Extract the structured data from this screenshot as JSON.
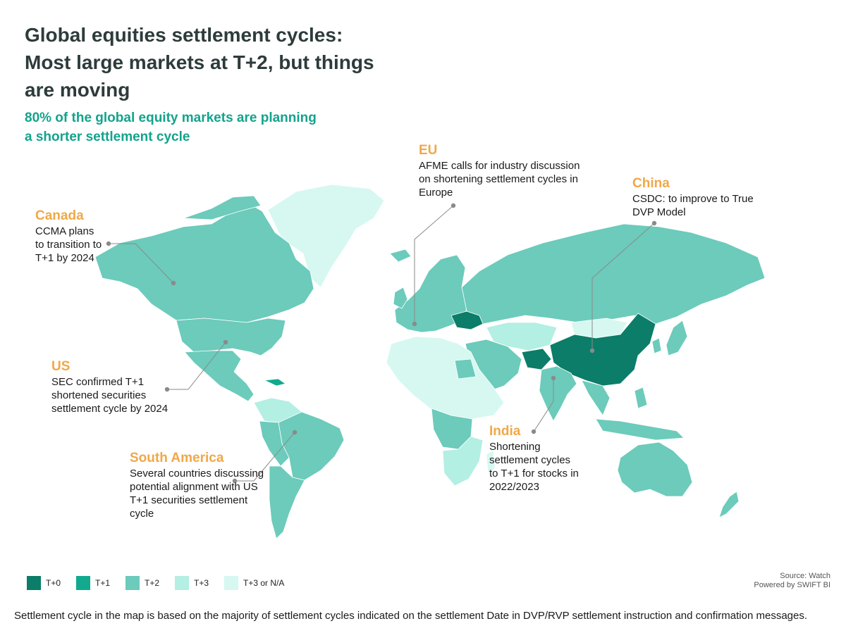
{
  "title": "Global equities settlement cycles: Most large markets at T+2, but things are moving",
  "subtitle": "80% of the global equity markets are planning a shorter settlement cycle",
  "colors": {
    "t0": "#0b7d68",
    "t1": "#12a98f",
    "t2": "#6ccbbb",
    "t3": "#b3efe3",
    "t3na": "#d6f8f1",
    "accent_orange": "#f0a848",
    "leader": "#8a8a8a"
  },
  "callouts": {
    "eu": {
      "head": "EU",
      "body": "AFME calls for industry discussion on shortening settlement cycles in Europe"
    },
    "china": {
      "head": "China",
      "body": "CSDC: to improve to True DVP Model"
    },
    "canada": {
      "head": "Canada",
      "body": "CCMA plans to transition to T+1 by 2024"
    },
    "us": {
      "head": "US",
      "body": "SEC confirmed T+1 shortened securities settlement cycle by 2024"
    },
    "south_america": {
      "head": "South America",
      "body": "Several countries discussing potential alignment with US T+1 securities settlement cycle"
    },
    "india": {
      "head": "India",
      "body": "Shortening settlement cycles to T+1 for stocks in 2022/2023"
    }
  },
  "legend": [
    {
      "label": "T+0",
      "color": "#0b7d68"
    },
    {
      "label": "T+1",
      "color": "#12a98f"
    },
    {
      "label": "T+2",
      "color": "#6ccbbb"
    },
    {
      "label": "T+3",
      "color": "#b3efe3"
    },
    {
      "label": "T+3 or N/A",
      "color": "#d6f8f1"
    }
  ],
  "source": {
    "line1": "Source: Watch",
    "line2": "Powered by SWIFT BI"
  },
  "footnote": "Settlement cycle in the map is based on the majority of settlement cycles indicated on the settlement Date in DVP/RVP settlement instruction and confirmation messages."
}
